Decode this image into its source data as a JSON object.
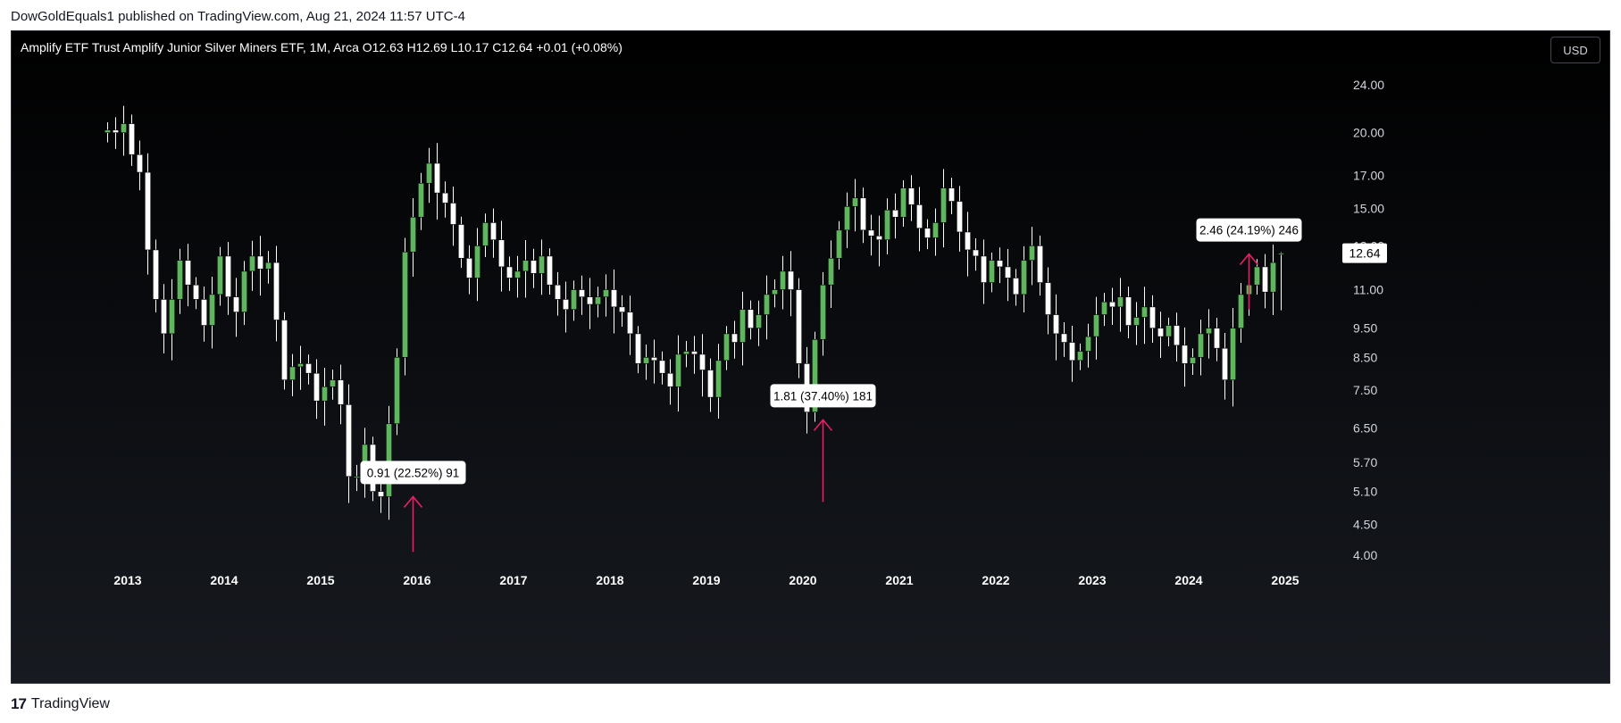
{
  "header": {
    "publisher_line": "DowGoldEquals1 published on TradingView.com, Aug 21, 2024 11:57 UTC-4"
  },
  "legend": {
    "text": "Amplify ETF Trust Amplify Junior Silver Miners ETF, 1M, Arca  O12.63  H12.69  L10.17  C12.64  +0.01 (+0.08%)"
  },
  "currency_button": "USD",
  "footer": {
    "brand": "TradingView"
  },
  "colors": {
    "up_fill": "#5fb65f",
    "down_fill": "#ffffff",
    "wick": "#ffffff",
    "annotation_arrow": "#e91e63",
    "label_bg": "#ffffff",
    "label_text": "#000000"
  },
  "chart_data": {
    "type": "candlestick",
    "timeframe": "1M",
    "y_scale": "log",
    "ylim": [
      3.7,
      27.5
    ],
    "x_tick_labels": [
      "2013",
      "2014",
      "2015",
      "2016",
      "2017",
      "2018",
      "2019",
      "2020",
      "2021",
      "2022",
      "2023",
      "2024",
      "2025"
    ],
    "y_tick_labels": [
      "24.00",
      "20.00",
      "17.00",
      "15.00",
      "13.00",
      "11.00",
      "9.50",
      "8.50",
      "7.50",
      "6.50",
      "5.70",
      "5.10",
      "4.50",
      "4.00"
    ],
    "last_price_label": "12.64",
    "last_bar": {
      "open": 12.63,
      "high": 12.69,
      "low": 10.17,
      "close": 12.64,
      "change": "+0.01 (+0.08%)"
    },
    "closes": [
      20.2,
      20.0,
      20.7,
      18.4,
      17.2,
      12.8,
      10.6,
      9.3,
      10.6,
      12.3,
      11.2,
      10.6,
      9.6,
      10.8,
      12.5,
      10.7,
      10.1,
      11.8,
      12.5,
      11.9,
      12.2,
      9.8,
      7.8,
      8.2,
      8.3,
      8.0,
      7.2,
      7.6,
      7.8,
      7.1,
      5.4,
      5.4,
      6.1,
      5.1,
      5.0,
      6.6,
      8.5,
      12.7,
      14.5,
      16.5,
      17.8,
      15.9,
      15.3,
      14.1,
      12.4,
      11.5,
      13.0,
      14.2,
      13.3,
      12.0,
      11.5,
      11.8,
      12.3,
      11.7,
      12.5,
      11.2,
      10.6,
      10.2,
      11.0,
      10.7,
      10.4,
      10.7,
      11.0,
      10.3,
      10.1,
      9.3,
      8.3,
      8.5,
      8.4,
      8.0,
      7.6,
      8.6,
      8.7,
      8.6,
      8.1,
      7.3,
      8.4,
      9.3,
      9.0,
      10.2,
      9.5,
      10.0,
      10.8,
      11.0,
      11.8,
      11.0,
      8.3,
      6.9,
      9.1,
      11.2,
      12.4,
      13.8,
      15.1,
      15.6,
      13.8,
      13.5,
      13.3,
      14.9,
      14.5,
      16.2,
      15.2,
      13.9,
      13.4,
      14.2,
      16.2,
      15.4,
      13.7,
      12.8,
      12.5,
      11.3,
      12.3,
      12.0,
      11.5,
      10.8,
      12.3,
      13.0,
      11.3,
      10.0,
      9.3,
      9.0,
      8.4,
      8.7,
      9.2,
      10.0,
      10.5,
      10.3,
      10.7,
      9.6,
      9.9,
      10.3,
      9.5,
      9.2,
      9.6,
      8.9,
      8.3,
      8.5,
      9.3,
      9.5,
      8.8,
      7.8,
      9.5,
      10.8,
      11.2,
      12.0,
      10.9,
      12.2,
      12.64
    ],
    "annotations": [
      {
        "label": "0.91 (22.52%) 91",
        "x_date": "2015-12",
        "arrow_from": 4.05,
        "arrow_to": 5.0
      },
      {
        "label": "1.81 (37.40%) 181",
        "x_date": "2020-03",
        "arrow_from": 4.9,
        "arrow_to": 6.7
      },
      {
        "label": "2.46 (24.19%) 246",
        "x_date": "2024-08",
        "arrow_from": 10.2,
        "arrow_to": 12.6
      }
    ]
  }
}
